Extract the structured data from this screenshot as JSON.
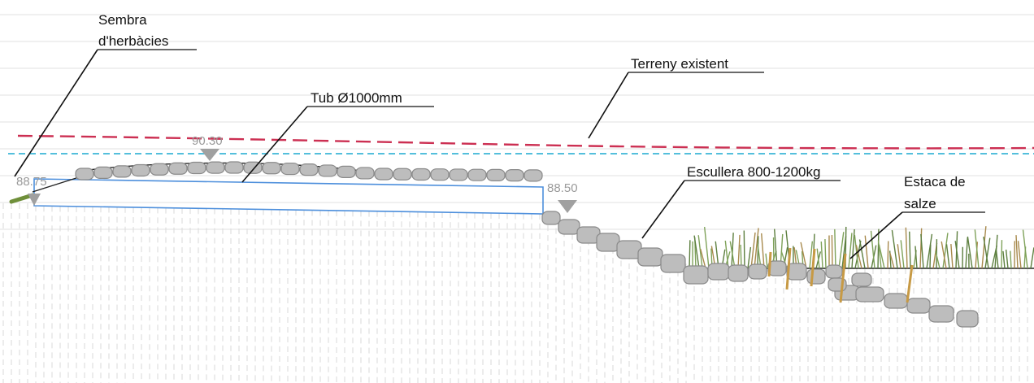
{
  "labels": {
    "herbaceous": [
      "Sembra",
      "d'herbàcies"
    ],
    "existing_ground": "Terreny existent",
    "pipe": "Tub Ø1000mm",
    "riprap": "Escullera 800-1200kg",
    "willow_stake": [
      "Estaca de",
      "salze"
    ]
  },
  "elevations": {
    "left": "88.75",
    "top": "90.30",
    "right": "88.50"
  },
  "colors": {
    "existing_ground_line": "#cc2f52",
    "water_level_line": "#3cb6d8",
    "pipe_outline": "#4d8fdc",
    "rock_fill": "#bdbdbd",
    "rock_stroke": "#8a8a8a",
    "vegetation": "#6f8f3a",
    "stake": "#c79a45",
    "marker": "#a0a0a0"
  }
}
